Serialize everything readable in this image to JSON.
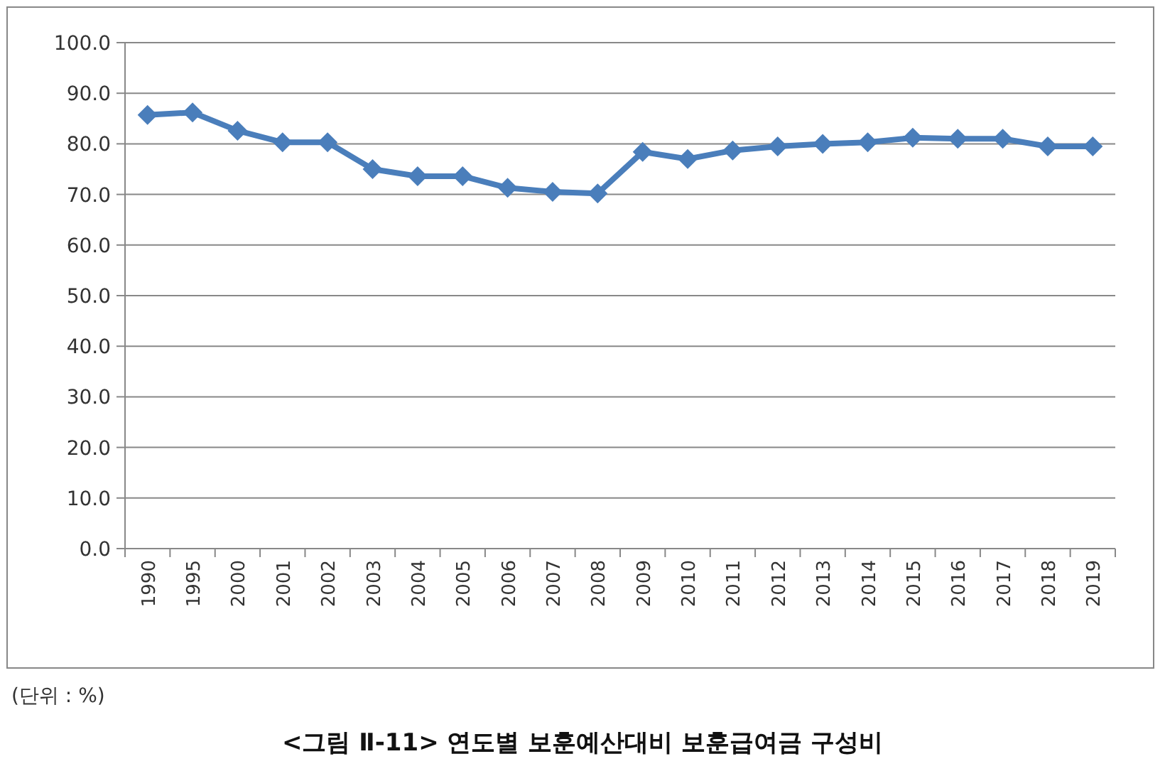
{
  "chart_data": {
    "type": "line",
    "title": "<그림 Ⅱ-11> 연도별 보훈예산대비 보훈급여금 구성비",
    "annotations": [
      "(단위 : %)"
    ],
    "categories": [
      "1990",
      "1995",
      "2000",
      "2001",
      "2002",
      "2003",
      "2004",
      "2005",
      "2006",
      "2007",
      "2008",
      "2009",
      "2010",
      "2011",
      "2012",
      "2013",
      "2014",
      "2015",
      "2016",
      "2017",
      "2018",
      "2019"
    ],
    "series": [
      {
        "color": "#4a7ebb",
        "values": [
          85.7,
          86.2,
          82.6,
          80.3,
          80.3,
          75.0,
          73.6,
          73.6,
          71.3,
          70.5,
          70.2,
          78.4,
          77.0,
          78.7,
          79.5,
          80.0,
          80.3,
          81.2,
          81.0,
          81.0,
          79.5,
          79.5
        ]
      }
    ],
    "ylim": [
      0,
      100
    ],
    "yticks": [
      {
        "value": 0,
        "label": "0.0"
      },
      {
        "value": 10,
        "label": "10.0"
      },
      {
        "value": 20,
        "label": "20.0"
      },
      {
        "value": 30,
        "label": "30.0"
      },
      {
        "value": 40,
        "label": "40.0"
      },
      {
        "value": 50,
        "label": "50.0"
      },
      {
        "value": 60,
        "label": "60.0"
      },
      {
        "value": 70,
        "label": "70.0"
      },
      {
        "value": 80,
        "label": "80.0"
      },
      {
        "value": 90,
        "label": "90.0"
      },
      {
        "value": 100,
        "label": "100.0"
      }
    ],
    "grid": "y",
    "marker": "diamond",
    "line_style": "solid"
  }
}
